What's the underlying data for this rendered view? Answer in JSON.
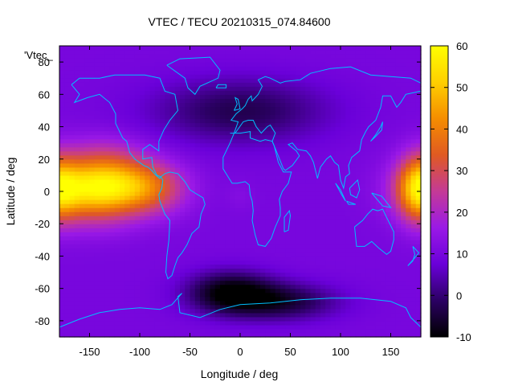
{
  "chart_data": {
    "type": "heatmap",
    "title": "VTEC / TECU 20210315_074.84600",
    "xlabel": "Longitude / deg",
    "ylabel": "Latitude / deg",
    "xlim": [
      -180,
      180
    ],
    "ylim": [
      -90,
      90
    ],
    "x_ticks": [
      -150,
      -100,
      -50,
      0,
      50,
      100,
      150
    ],
    "y_ticks": [
      -80,
      -60,
      -40,
      -20,
      0,
      20,
      40,
      60,
      80
    ],
    "colorbar": {
      "min": -10,
      "max": 60,
      "ticks": [
        -10,
        0,
        10,
        20,
        30,
        40,
        50,
        60
      ],
      "palette": [
        "#000000",
        "#2b0063",
        "#6a00d9",
        "#9a19e6",
        "#c43a96",
        "#e05a22",
        "#f58d00",
        "#ffcf00",
        "#ffff00"
      ]
    },
    "legend_entry": "'Vtec_",
    "grid": false,
    "overlay": "coastlines",
    "overlay_color": "#00bfff",
    "background_value": 10,
    "features": [
      {
        "lon": -155,
        "lat": 2,
        "value": 44,
        "sigma_lon": 32,
        "sigma_lat": 13
      },
      {
        "lon": -120,
        "lat": 4,
        "value": 34,
        "sigma_lon": 30,
        "sigma_lat": 12
      },
      {
        "lon": -85,
        "lat": 2,
        "value": 25,
        "sigma_lon": 25,
        "sigma_lat": 11
      },
      {
        "lon": -135,
        "lat": 25,
        "value": 16,
        "sigma_lon": 30,
        "sigma_lat": 9
      },
      {
        "lon": -140,
        "lat": -20,
        "value": 12,
        "sigma_lon": 30,
        "sigma_lat": 9
      },
      {
        "lon": 177,
        "lat": 2,
        "value": 36,
        "sigma_lon": 14,
        "sigma_lat": 14
      },
      {
        "lon": 0,
        "lat": -3,
        "value": 12,
        "sigma_lon": 10,
        "sigma_lat": 6
      },
      {
        "lon": -10,
        "lat": -62,
        "value": -9,
        "sigma_lon": 30,
        "sigma_lat": 9
      },
      {
        "lon": 40,
        "lat": -68,
        "value": -5,
        "sigma_lon": 40,
        "sigma_lat": 8
      },
      {
        "lon": 0,
        "lat": 50,
        "value": -3,
        "sigma_lon": 60,
        "sigma_lat": 14
      }
    ]
  }
}
